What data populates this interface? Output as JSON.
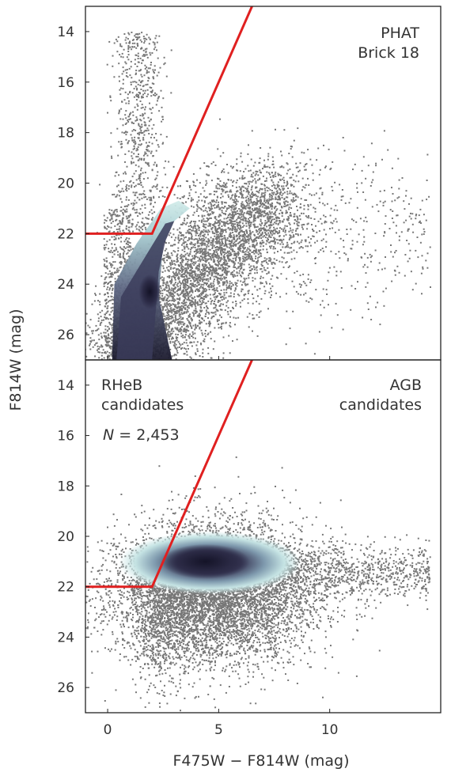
{
  "chart_data": [
    {
      "type": "scatter",
      "panel": "top",
      "description_kind": "color-magnitude diagram (density + scatter)",
      "xlabel": "F475W − F814W (mag)",
      "ylabel": "F814W (mag)",
      "xlim": [
        -1,
        15
      ],
      "ylim": [
        27,
        13
      ],
      "y_inverted": true,
      "xticks": [
        0,
        5,
        10
      ],
      "yticks": [
        14,
        16,
        18,
        20,
        22,
        24,
        26
      ],
      "annotations": [
        "PHAT",
        "Brick 18"
      ],
      "boundary_line": {
        "color": "#e02020",
        "points": [
          [
            -1,
            22
          ],
          [
            2,
            22
          ],
          [
            6.5,
            13
          ]
        ]
      },
      "density_colors": [
        "#c9e6e6",
        "#8fb2bd",
        "#5a5f7e",
        "#1b1a2e"
      ],
      "scatter_color": "#777777"
    },
    {
      "type": "scatter",
      "panel": "bottom",
      "description_kind": "color-magnitude diagram (density + scatter)",
      "xlabel": "F475W − F814W (mag)",
      "ylabel": "F814W (mag)",
      "xlim": [
        -1,
        15
      ],
      "ylim": [
        27,
        13
      ],
      "y_inverted": true,
      "xticks": [
        0,
        5,
        10
      ],
      "yticks": [
        14,
        16,
        18,
        20,
        22,
        24,
        26
      ],
      "annotations": {
        "left": [
          "RHeB",
          "candidates"
        ],
        "right": [
          "AGB",
          "candidates"
        ],
        "n_label": "N = 2,453"
      },
      "boundary_line": {
        "color": "#e02020",
        "points": [
          [
            -1,
            22
          ],
          [
            2,
            22
          ],
          [
            6.5,
            13
          ]
        ]
      },
      "density_colors": [
        "#c9e6e6",
        "#8fb2bd",
        "#5a5f7e",
        "#1b1a2e"
      ],
      "scatter_color": "#777777"
    }
  ],
  "labels": {
    "ylabel": "F814W (mag)",
    "xlabel": "F475W − F814W (mag)",
    "top_annot_1": "PHAT",
    "top_annot_2": "Brick 18",
    "bot_left_1": "RHeB",
    "bot_left_2": "candidates",
    "bot_right_1": "AGB",
    "bot_right_2": "candidates",
    "n_prefix": "N",
    "n_value": " = 2,453"
  }
}
